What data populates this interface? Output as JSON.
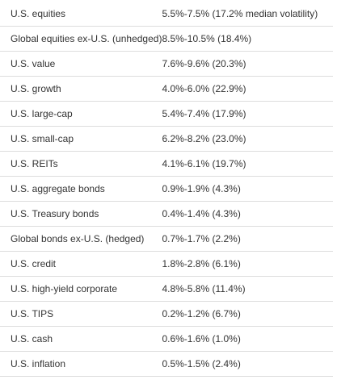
{
  "table": {
    "rows": [
      [
        "U.S. equities",
        "5.5%-7.5% (17.2% median volatility)"
      ],
      [
        "Global equities ex-U.S. (unhedged)",
        "8.5%-10.5% (18.4%)"
      ],
      [
        "U.S. value",
        "7.6%-9.6% (20.3%)"
      ],
      [
        "U.S. growth",
        "4.0%-6.0% (22.9%)"
      ],
      [
        "U.S. large-cap",
        "5.4%-7.4% (17.9%)"
      ],
      [
        "U.S. small-cap",
        "6.2%-8.2% (23.0%)"
      ],
      [
        "U.S. REITs",
        "4.1%-6.1% (19.7%)"
      ],
      [
        "U.S. aggregate bonds",
        "0.9%-1.9% (4.3%)"
      ],
      [
        "U.S. Treasury bonds",
        "0.4%-1.4% (4.3%)"
      ],
      [
        "Global bonds ex-U.S. (hedged)",
        "0.7%-1.7% (2.2%)"
      ],
      [
        "U.S. credit",
        "1.8%-2.8% (6.1%)"
      ],
      [
        "U.S. high-yield corporate",
        "4.8%-5.8% (11.4%)"
      ],
      [
        "U.S. TIPS",
        "0.2%-1.2% (6.7%)"
      ],
      [
        "U.S. cash",
        "0.6%-1.6% (1.0%)"
      ],
      [
        "U.S. inflation",
        "0.5%-1.5% (2.4%)"
      ]
    ]
  }
}
